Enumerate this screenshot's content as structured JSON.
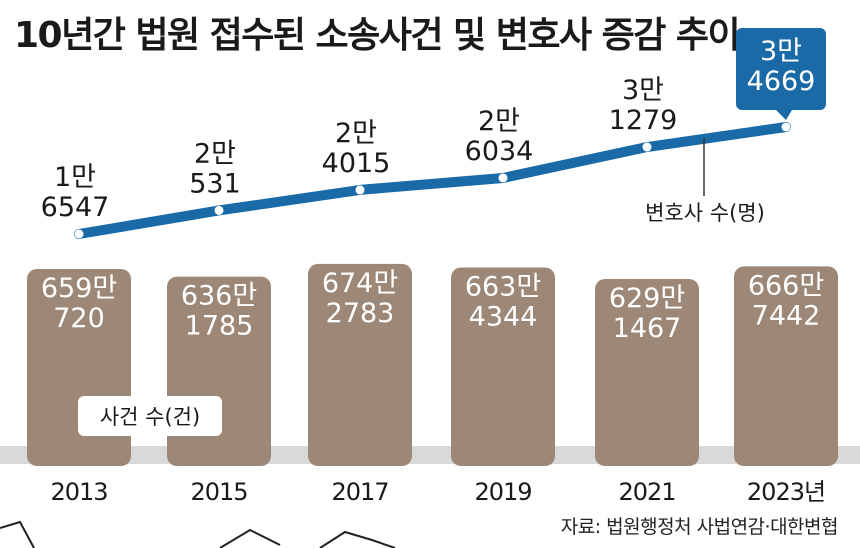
{
  "title": "10년간 법원 접수된 소송사건 및 변호사 증감 추이",
  "source": "자료: 법원행정처 사법연감·대한변협",
  "colors": {
    "bar": "#9d8878",
    "line": "#1b6aa8",
    "highlight_box": "#1b6aa8",
    "axis_band": "#d9d9d9",
    "text": "#1a1a1a"
  },
  "chart_data": {
    "type": "bar+line",
    "categories": [
      "2013",
      "2015",
      "2017",
      "2019",
      "2021",
      "2023년"
    ],
    "series": [
      {
        "name": "사건 수(건)",
        "type": "bar",
        "values": [
          6590720,
          6361785,
          6742783,
          6634344,
          6291467,
          6667442
        ],
        "labels": [
          [
            "659만",
            "720"
          ],
          [
            "636만",
            "1785"
          ],
          [
            "674만",
            "2783"
          ],
          [
            "663만",
            "4344"
          ],
          [
            "629만",
            "1467"
          ],
          [
            "666만",
            "7442"
          ]
        ]
      },
      {
        "name": "변호사 수(명)",
        "type": "line",
        "values": [
          16547,
          20531,
          24015,
          26034,
          31279,
          34669
        ],
        "labels": [
          [
            "1만",
            "6547"
          ],
          [
            "2만",
            "531"
          ],
          [
            "2만",
            "4015"
          ],
          [
            "2만",
            "6034"
          ],
          [
            "3만",
            "1279"
          ],
          [
            "3만",
            "4669"
          ]
        ]
      }
    ],
    "highlight_index": 5,
    "grid": false
  }
}
